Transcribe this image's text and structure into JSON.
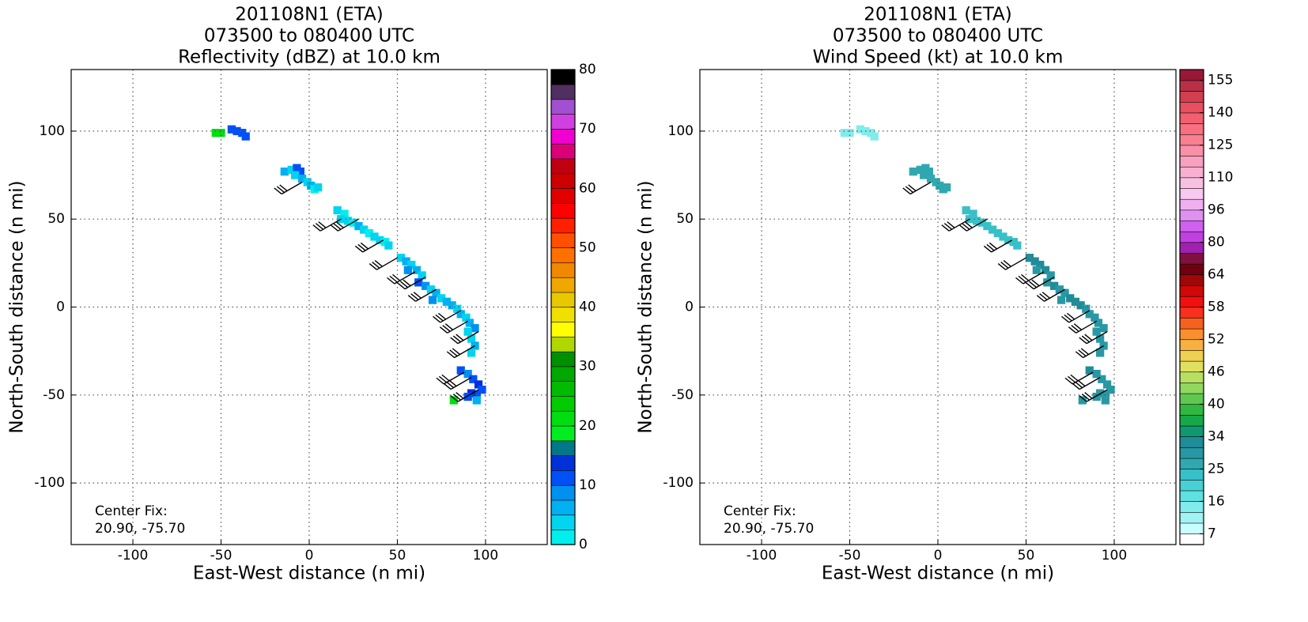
{
  "chart_data": [
    {
      "type": "radar-field",
      "title": [
        "201108N1 (ETA)",
        "073500 to 080400 UTC",
        "Reflectivity (dBZ) at 10.0 km"
      ],
      "x_label": "East-West distance (n mi)",
      "y_label": "North-South distance (n mi)",
      "annotation": [
        "Center Fix:",
        "20.90, -75.70"
      ],
      "xlim": [
        -135,
        135
      ],
      "ylim": [
        -135,
        135
      ],
      "xticks": [
        -100,
        -50,
        0,
        50,
        100
      ],
      "yticks": [
        -100,
        -50,
        0,
        50,
        100
      ],
      "grid": true,
      "colorbar": {
        "scale": "linear",
        "clim": [
          0,
          80
        ],
        "ticks": [
          0,
          10,
          20,
          30,
          40,
          50,
          60,
          70,
          80
        ],
        "colors": [
          "#00eeee",
          "#00d4ee",
          "#00b0f0",
          "#0090f0",
          "#0050f8",
          "#0030d8",
          "#007888",
          "#00ee20",
          "#00dd10",
          "#00cc00",
          "#00bb00",
          "#00a800",
          "#009000",
          "#b0d800",
          "#ffff00",
          "#f0e000",
          "#e8c800",
          "#f0a800",
          "#f08800",
          "#ff7000",
          "#ff5000",
          "#ff2000",
          "#ff0000",
          "#e00000",
          "#cc0000",
          "#c00010",
          "#dc0078",
          "#f000d0",
          "#d040e0",
          "#a050d0",
          "#503060",
          "#000000"
        ]
      },
      "field": {
        "x": [
          -53,
          -50,
          -44,
          -41,
          -38,
          -36,
          -14,
          -10,
          -7,
          -5,
          -8,
          -4,
          -1,
          1,
          3,
          5,
          16,
          20,
          18,
          22,
          25,
          28,
          31,
          34,
          37,
          40,
          43,
          45,
          52,
          55,
          58,
          56,
          61,
          64,
          62,
          66,
          69,
          72,
          70,
          75,
          78,
          81,
          84,
          86,
          89,
          91,
          94,
          90,
          92,
          94,
          92,
          86,
          90,
          93,
          96,
          98,
          95,
          92,
          95,
          90,
          82
        ],
        "y": [
          99,
          99,
          101,
          100,
          99,
          97,
          77,
          78,
          79,
          77,
          75,
          73,
          71,
          69,
          67,
          68,
          55,
          53,
          50,
          49,
          48,
          46,
          44,
          42,
          40,
          38,
          37,
          35,
          28,
          26,
          24,
          21,
          21,
          18,
          14,
          12,
          10,
          8,
          4,
          5,
          3,
          1,
          -1,
          -4,
          -6,
          -9,
          -12,
          -14,
          -18,
          -22,
          -26,
          -36,
          -38,
          -41,
          -44,
          -47,
          -50,
          -49,
          -53,
          -51,
          -53
        ],
        "values": [
          20,
          21,
          11,
          12,
          10,
          11,
          5,
          3,
          12,
          10,
          4,
          6,
          3,
          5,
          2,
          4,
          3,
          2,
          4,
          3,
          2,
          5,
          3,
          2,
          4,
          3,
          2,
          4,
          4,
          7,
          3,
          9,
          5,
          3,
          10,
          8,
          4,
          6,
          9,
          3,
          5,
          7,
          4,
          6,
          3,
          5,
          8,
          4,
          3,
          5,
          4,
          10,
          8,
          11,
          13,
          12,
          10,
          13,
          6,
          11,
          20
        ]
      },
      "barbs": {
        "x": [
          -4,
          18,
          28,
          42,
          50,
          60,
          66,
          72,
          86,
          90,
          96,
          94,
          88,
          92,
          96
        ],
        "y": [
          71,
          50,
          50,
          38,
          28,
          20,
          17,
          10,
          -2,
          -8,
          -14,
          -22,
          -37,
          -40,
          -47
        ],
        "speed": [
          30,
          30,
          30,
          30,
          30,
          30,
          30,
          30,
          30,
          30,
          30,
          30,
          30,
          30,
          30
        ],
        "direction": [
          240,
          240,
          240,
          240,
          240,
          240,
          240,
          240,
          240,
          240,
          240,
          240,
          240,
          240,
          240
        ]
      }
    },
    {
      "type": "radar-field",
      "title": [
        "201108N1 (ETA)",
        "073500 to 080400 UTC",
        "Wind Speed (kt) at 10.0 km"
      ],
      "x_label": "East-West distance (n mi)",
      "y_label": "North-South distance (n mi)",
      "annotation": [
        "Center Fix:",
        "20.90, -75.70"
      ],
      "xlim": [
        -135,
        135
      ],
      "ylim": [
        -135,
        135
      ],
      "xticks": [
        -100,
        -50,
        0,
        50,
        100
      ],
      "yticks": [
        -100,
        -50,
        0,
        50,
        100
      ],
      "grid": true,
      "colorbar": {
        "scale": "ticks",
        "ticks": [
          7,
          16,
          25,
          34,
          40,
          46,
          52,
          58,
          64,
          80,
          96,
          110,
          125,
          140,
          155
        ],
        "colors": [
          "#ffffff",
          "#c8ffff",
          "#a0f4f4",
          "#80ecec",
          "#60e0e0",
          "#48d0d4",
          "#38c0c8",
          "#30a8b0",
          "#2898a4",
          "#208c98",
          "#109870",
          "#18a848",
          "#30b840",
          "#60c850",
          "#90d860",
          "#b8e060",
          "#e0e060",
          "#f0d050",
          "#f8b040",
          "#f89030",
          "#f86020",
          "#f83020",
          "#f01010",
          "#d00808",
          "#a00808",
          "#700010",
          "#801040",
          "#a020b0",
          "#c040e0",
          "#d060f0",
          "#e090f0",
          "#f0b0f0",
          "#f8c8f0",
          "#f8c0e0",
          "#f8b0d0",
          "#f8a0c0",
          "#f890a8",
          "#f88090",
          "#f87080",
          "#f06070",
          "#e85060",
          "#d04050",
          "#b83048",
          "#981838"
        ]
      },
      "field": {
        "x": [
          -53,
          -50,
          -44,
          -41,
          -38,
          -36,
          -14,
          -10,
          -7,
          -5,
          -8,
          -4,
          -1,
          1,
          3,
          5,
          16,
          20,
          18,
          22,
          25,
          28,
          31,
          34,
          37,
          40,
          43,
          45,
          52,
          55,
          58,
          56,
          61,
          64,
          62,
          66,
          69,
          72,
          70,
          75,
          78,
          81,
          84,
          86,
          89,
          91,
          94,
          90,
          92,
          94,
          92,
          86,
          90,
          93,
          96,
          98,
          95,
          92,
          95,
          90,
          82
        ],
        "y": [
          99,
          99,
          101,
          100,
          99,
          97,
          77,
          78,
          79,
          77,
          75,
          73,
          71,
          69,
          67,
          68,
          55,
          53,
          50,
          49,
          48,
          46,
          44,
          42,
          40,
          38,
          37,
          35,
          28,
          26,
          24,
          21,
          21,
          18,
          14,
          12,
          10,
          8,
          4,
          5,
          3,
          1,
          -1,
          -4,
          -6,
          -9,
          -12,
          -14,
          -18,
          -22,
          -26,
          -36,
          -38,
          -41,
          -44,
          -47,
          -50,
          -49,
          -53,
          -51,
          -53
        ],
        "values": [
          14,
          14,
          14,
          14,
          14,
          14,
          27,
          27,
          26,
          27,
          27,
          26,
          27,
          27,
          26,
          27,
          24,
          24,
          24,
          24,
          24,
          24,
          24,
          24,
          24,
          24,
          24,
          24,
          33,
          33,
          33,
          28,
          33,
          28,
          28,
          33,
          28,
          28,
          28,
          33,
          33,
          33,
          28,
          28,
          28,
          28,
          28,
          28,
          28,
          28,
          28,
          33,
          30,
          30,
          28,
          28,
          28,
          28,
          28,
          28,
          30
        ]
      },
      "barbs": {
        "x": [
          -4,
          18,
          28,
          42,
          50,
          60,
          66,
          72,
          86,
          90,
          96,
          94,
          88,
          92,
          96
        ],
        "y": [
          71,
          50,
          50,
          38,
          28,
          20,
          17,
          10,
          -2,
          -8,
          -14,
          -22,
          -37,
          -40,
          -47
        ],
        "speed": [
          30,
          30,
          30,
          30,
          30,
          30,
          30,
          30,
          30,
          30,
          30,
          30,
          30,
          30,
          30
        ],
        "direction": [
          240,
          240,
          240,
          240,
          240,
          240,
          240,
          240,
          240,
          240,
          240,
          240,
          240,
          240,
          240
        ]
      }
    }
  ]
}
